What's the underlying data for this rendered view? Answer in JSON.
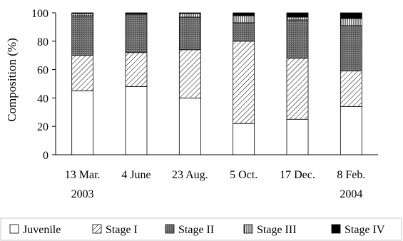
{
  "chart_data": {
    "type": "bar",
    "stacked": true,
    "title": "",
    "xlabel": "",
    "ylabel": "Composition (%)",
    "ylim": [
      0,
      100
    ],
    "yticks": [
      0,
      20,
      40,
      60,
      80,
      100
    ],
    "grid": false,
    "legend_position": "bottom",
    "categories": [
      {
        "line1": "13 Mar.",
        "line2": "2003"
      },
      {
        "line1": "4 June",
        "line2": ""
      },
      {
        "line1": "23 Aug.",
        "line2": ""
      },
      {
        "line1": "5 Oct.",
        "line2": ""
      },
      {
        "line1": "17 Dec.",
        "line2": ""
      },
      {
        "line1": "8 Feb.",
        "line2": "2004"
      }
    ],
    "series": [
      {
        "name": "Juvenile",
        "pattern": "white",
        "values": [
          45,
          48,
          40,
          22,
          25,
          34
        ]
      },
      {
        "name": "Stage I",
        "pattern": "diagonal",
        "values": [
          25,
          24,
          34,
          58,
          43,
          25
        ]
      },
      {
        "name": "Stage II",
        "pattern": "gray-dots",
        "values": [
          28,
          27,
          23,
          13,
          27,
          32
        ]
      },
      {
        "name": "Stage III",
        "pattern": "vertical",
        "values": [
          1.5,
          0.5,
          2.5,
          5,
          2,
          5
        ]
      },
      {
        "name": "Stage IV",
        "pattern": "black",
        "values": [
          0.5,
          0.5,
          0.5,
          2,
          3,
          4
        ]
      }
    ]
  }
}
